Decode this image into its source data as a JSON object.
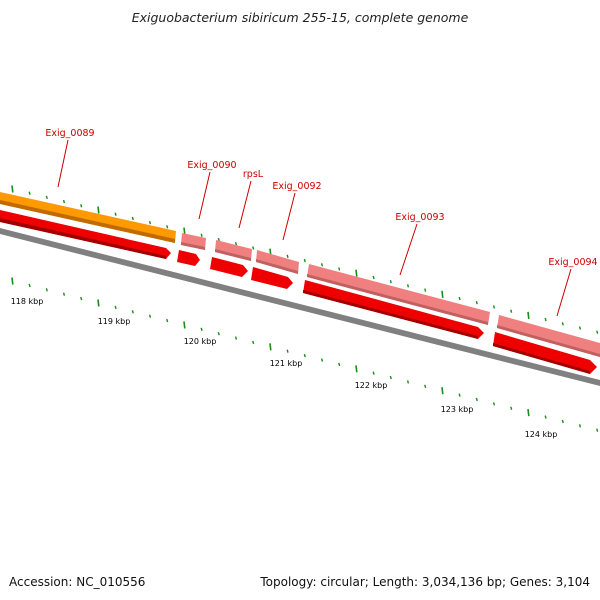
{
  "title": "Exiguobacterium sibiricum 255-15, complete genome",
  "footer": {
    "accession": "Accession: NC_010556",
    "summary": "Topology: circular; Length: 3,034,136 bp; Genes: 3,104"
  },
  "colors": {
    "label_red": "#cc0000",
    "gene_orange": "#ff9900",
    "gene_pink": "#f08080",
    "gene_red": "#ee0000",
    "backbone_gray": "#808080",
    "tick_green": "#1a8c1a"
  },
  "scale_labels": [
    "118 kbp",
    "119 kbp",
    "120 kbp",
    "121 kbp",
    "122 kbp",
    "123 kbp",
    "124 kbp"
  ],
  "gene_labels": [
    "Exig_0089",
    "Exig_0090",
    "rpsL",
    "Exig_0092",
    "Exig_0093",
    "Exig_0094"
  ]
}
